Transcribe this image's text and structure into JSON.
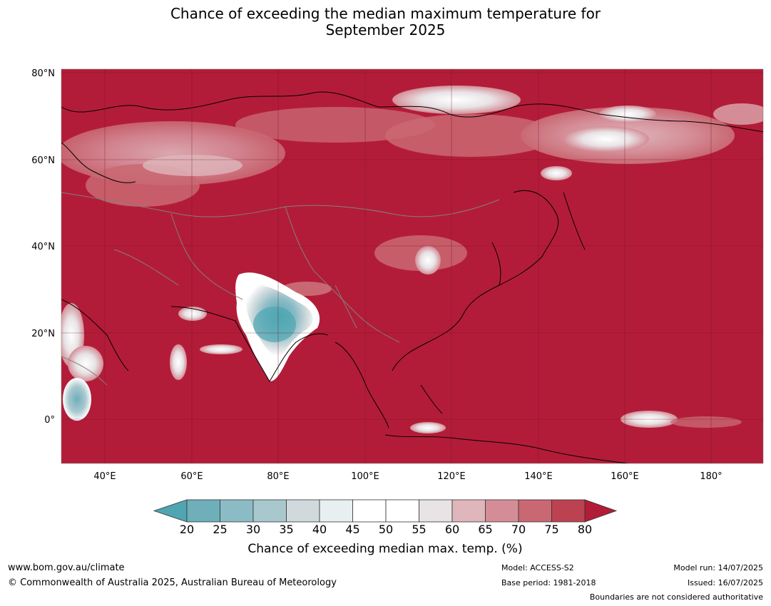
{
  "title_line1": "Chance of exceeding the median maximum temperature for",
  "title_line2": "September 2025",
  "map": {
    "lat_labels": [
      "80°N",
      "60°N",
      "40°N",
      "20°N",
      "0°"
    ],
    "lon_labels": [
      "40°E",
      "60°E",
      "80°E",
      "100°E",
      "120°E",
      "140°E",
      "160°E",
      "180°"
    ],
    "background_color": "#b31c38"
  },
  "colorbar": {
    "ticks": [
      "20",
      "25",
      "30",
      "35",
      "40",
      "45",
      "50",
      "55",
      "60",
      "65",
      "70",
      "75",
      "80"
    ],
    "colors": [
      "#4fa6b2",
      "#6eafba",
      "#8bbcc6",
      "#a9c8ce",
      "#d0dadd",
      "#e8eff1",
      "#ffffff",
      "#ffffff",
      "#e8e3e5",
      "#dfb6bb",
      "#d48d97",
      "#c96872",
      "#bd4251",
      "#b31c38"
    ],
    "label": "Chance of exceeding median max. temp. (%)"
  },
  "footer": {
    "website": "www.bom.gov.au/climate",
    "copyright": "© Commonwealth of Australia 2025, Australian Bureau of Meteorology",
    "model": "Model: ACCESS-S2",
    "base_period": "Base period: 1981-2018",
    "model_run": "Model run: 14/07/2025",
    "issued": "Issued: 16/07/2025",
    "boundaries_note": "Boundaries are not considered authoritative"
  }
}
